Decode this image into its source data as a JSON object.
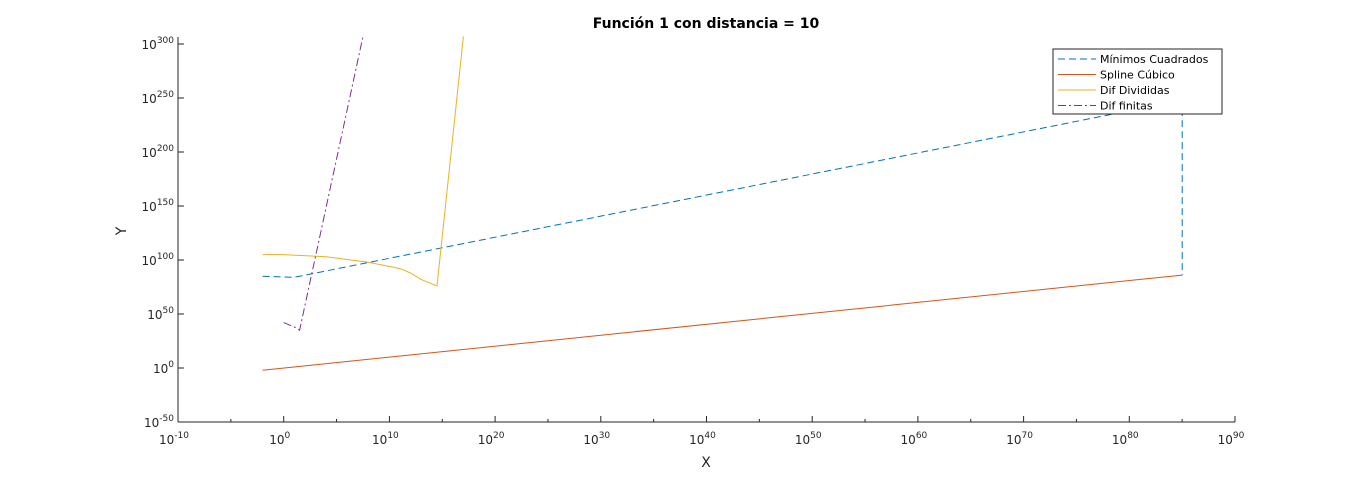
{
  "chart_data": {
    "type": "line",
    "title": "Función 1 con distancia = 10",
    "xlabel": "X",
    "ylabel": "Y",
    "xscale": "log",
    "yscale": "log",
    "xlim": [
      -10,
      90
    ],
    "ylim": [
      -50,
      300
    ],
    "axis_values_are_log10": true,
    "xticks": [
      {
        "base": "10",
        "exp": "-10",
        "value": -10
      },
      {
        "base": "10",
        "exp": "0",
        "value": 0
      },
      {
        "base": "10",
        "exp": "10",
        "value": 10
      },
      {
        "base": "10",
        "exp": "20",
        "value": 20
      },
      {
        "base": "10",
        "exp": "30",
        "value": 30
      },
      {
        "base": "10",
        "exp": "40",
        "value": 40
      },
      {
        "base": "10",
        "exp": "50",
        "value": 50
      },
      {
        "base": "10",
        "exp": "60",
        "value": 60
      },
      {
        "base": "10",
        "exp": "70",
        "value": 70
      },
      {
        "base": "10",
        "exp": "80",
        "value": 80
      },
      {
        "base": "10",
        "exp": "90",
        "value": 90
      }
    ],
    "yticks": [
      {
        "base": "10",
        "exp": "-50",
        "value": -50
      },
      {
        "base": "10",
        "exp": "0",
        "value": 0
      },
      {
        "base": "10",
        "exp": "50",
        "value": 50
      },
      {
        "base": "10",
        "exp": "100",
        "value": 100
      },
      {
        "base": "10",
        "exp": "150",
        "value": 150
      },
      {
        "base": "10",
        "exp": "200",
        "value": 200
      },
      {
        "base": "10",
        "exp": "250",
        "value": 250
      },
      {
        "base": "10",
        "exp": "300",
        "value": 300
      }
    ],
    "grid": false,
    "legend_position": "top-right",
    "series": [
      {
        "name": "Mínimos Cuadrados",
        "color": "#0072BD",
        "dash": "dashed",
        "x": [
          -2,
          1,
          1.5,
          82,
          85,
          85
        ],
        "y": [
          85,
          84,
          85,
          242,
          248,
          86
        ]
      },
      {
        "name": "Spline Cúbico",
        "color": "#D95319",
        "dash": "solid",
        "x": [
          -2,
          85
        ],
        "y": [
          -2,
          86
        ]
      },
      {
        "name": "Dif Divididas",
        "color": "#EDB120",
        "dash": "solid",
        "x": [
          -2,
          0,
          4,
          8,
          11,
          12,
          13,
          14,
          14.5,
          17
        ],
        "y": [
          105,
          105,
          103,
          98,
          92,
          88,
          82,
          78,
          76,
          307
        ]
      },
      {
        "name": "Dif finitas",
        "color": "#7E2F8E",
        "dash": "dashdot",
        "x": [
          0,
          1,
          1.5,
          7.5
        ],
        "y": [
          42,
          38,
          35,
          307
        ]
      }
    ]
  }
}
